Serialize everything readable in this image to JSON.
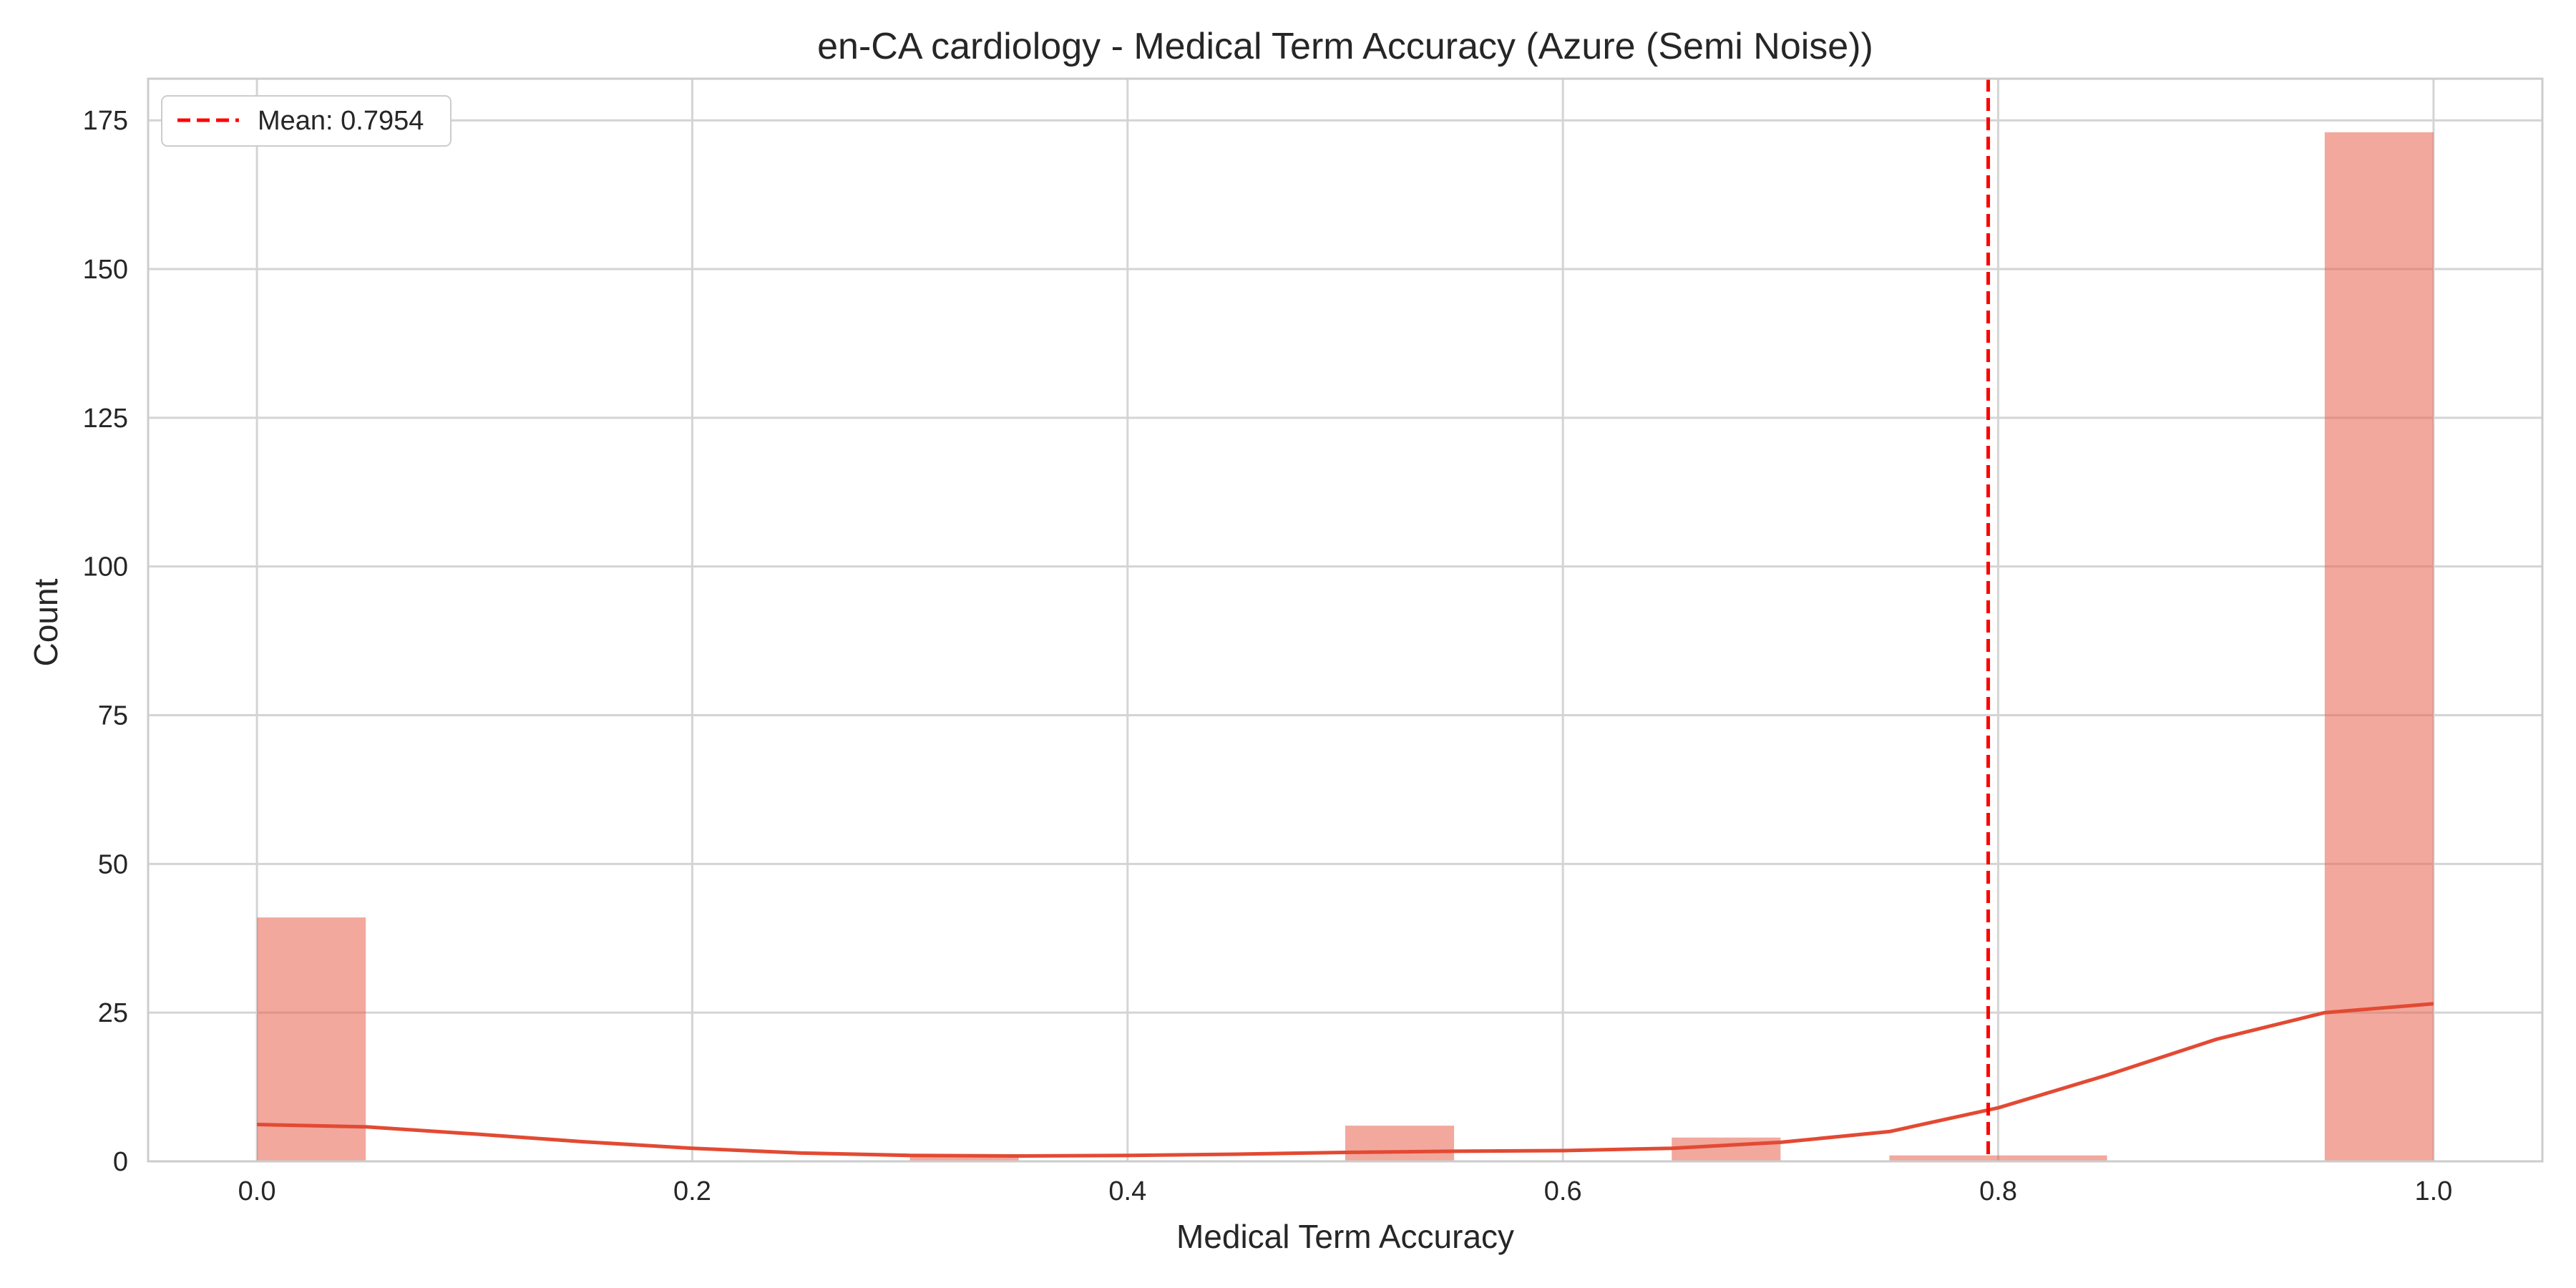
{
  "chart_data": {
    "type": "bar",
    "title": "en-CA cardiology - Medical Term Accuracy (Azure (Semi Noise))",
    "xlabel": "Medical Term Accuracy",
    "ylabel": "Count",
    "xlim": [
      -0.05,
      1.05
    ],
    "ylim": [
      0,
      182
    ],
    "x_ticks": [
      "0.0",
      "0.2",
      "0.4",
      "0.6",
      "0.8",
      "1.0"
    ],
    "y_ticks": [
      "0",
      "25",
      "50",
      "75",
      "100",
      "125",
      "150",
      "175"
    ],
    "grid": true,
    "legend_position": "top-left",
    "bin_width": 0.05,
    "bins": [
      {
        "x": 0.0,
        "count": 41
      },
      {
        "x": 0.3,
        "count": 1
      },
      {
        "x": 0.5,
        "count": 6
      },
      {
        "x": 0.65,
        "count": 4
      },
      {
        "x": 0.75,
        "count": 1
      },
      {
        "x": 0.8,
        "count": 1
      },
      {
        "x": 0.95,
        "count": 173
      }
    ],
    "kde": {
      "x": [
        0.0,
        0.05,
        0.1,
        0.15,
        0.2,
        0.25,
        0.3,
        0.35,
        0.4,
        0.45,
        0.5,
        0.55,
        0.6,
        0.65,
        0.7,
        0.75,
        0.8,
        0.85,
        0.9,
        0.95,
        1.0
      ],
      "y": [
        6.2,
        5.8,
        4.6,
        3.3,
        2.2,
        1.4,
        1.0,
        0.9,
        1.0,
        1.2,
        1.5,
        1.7,
        1.8,
        2.2,
        3.2,
        5.0,
        9.0,
        14.5,
        20.5,
        25.0,
        26.5
      ]
    },
    "mean_line": {
      "value": 0.7954,
      "label": "Mean: 0.7954"
    },
    "colors": {
      "bar": "#e8604c",
      "bar_opacity": 0.55,
      "kde": "#e24a33",
      "mean": "#ff0000",
      "grid": "#d4d4d4",
      "spine": "#cccccc",
      "text": "#262626"
    }
  }
}
